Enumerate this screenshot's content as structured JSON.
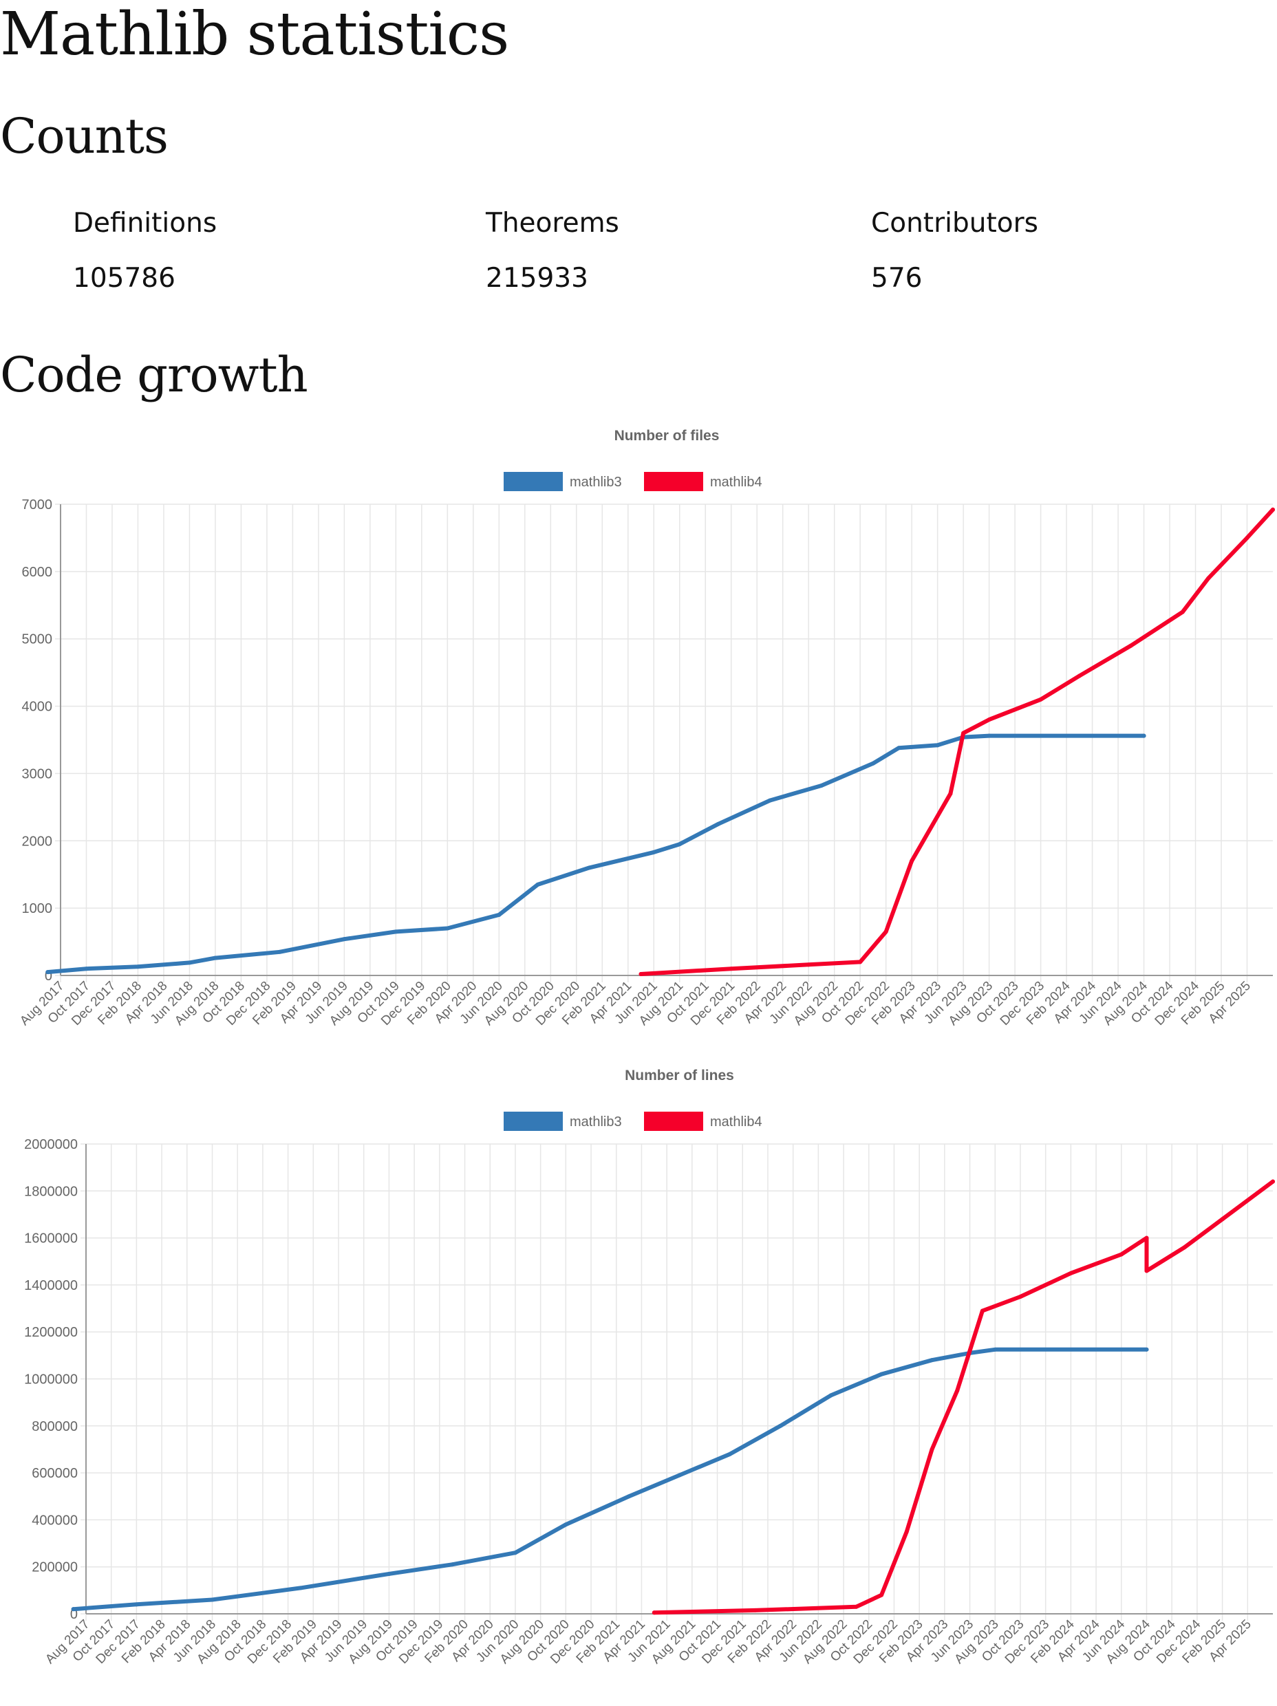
{
  "page": {
    "title": "Mathlib statistics"
  },
  "counts": {
    "heading": "Counts",
    "items": [
      {
        "label": "Definitions",
        "value": "105786"
      },
      {
        "label": "Theorems",
        "value": "215933"
      },
      {
        "label": "Contributors",
        "value": "576"
      }
    ]
  },
  "growth": {
    "heading": "Code growth"
  },
  "colors": {
    "mathlib3": "#3479b6",
    "mathlib4": "#f5002a",
    "grid": "#e6e6e6",
    "axis": "#666666"
  },
  "chart_data": [
    {
      "type": "line",
      "title": "Number of files",
      "xlabel": "",
      "ylabel": "",
      "ylim": [
        0,
        7000
      ],
      "yticks": [
        "0",
        "1000",
        "2000",
        "3000",
        "4000",
        "5000",
        "6000",
        "7000"
      ],
      "ytick_values": [
        0,
        1000,
        2000,
        3000,
        4000,
        5000,
        6000,
        7000
      ],
      "xticks": [
        "Aug 2017",
        "Oct 2017",
        "Dec 2017",
        "Feb 2018",
        "Apr 2018",
        "Jun 2018",
        "Aug 2018",
        "Oct 2018",
        "Dec 2018",
        "Feb 2019",
        "Apr 2019",
        "Jun 2019",
        "Aug 2019",
        "Oct 2019",
        "Dec 2019",
        "Feb 2020",
        "Apr 2020",
        "Jun 2020",
        "Aug 2020",
        "Oct 2020",
        "Dec 2020",
        "Feb 2021",
        "Apr 2021",
        "Jun 2021",
        "Aug 2021",
        "Oct 2021",
        "Dec 2021",
        "Feb 2022",
        "Apr 2022",
        "Jun 2022",
        "Aug 2022",
        "Oct 2022",
        "Dec 2022",
        "Feb 2023",
        "Apr 2023",
        "Jun 2023",
        "Aug 2023",
        "Oct 2023",
        "Dec 2023",
        "Feb 2024",
        "Apr 2024",
        "Jun 2024",
        "Aug 2024",
        "Oct 2024",
        "Dec 2024",
        "Feb 2025",
        "Apr 2025"
      ],
      "xrange": [
        "Aug 2017",
        "Jun 2025"
      ],
      "grid": true,
      "legend": "top-center",
      "series": [
        {
          "name": "mathlib3",
          "x": [
            "2017-07",
            "2017-10",
            "2018-02",
            "2018-06",
            "2018-08",
            "2019-01",
            "2019-06",
            "2019-10",
            "2020-02",
            "2020-06",
            "2020-09",
            "2021-01",
            "2021-06",
            "2021-08",
            "2021-11",
            "2022-03",
            "2022-07",
            "2022-11",
            "2023-01",
            "2023-04",
            "2023-06",
            "2023-08",
            "2024-08"
          ],
          "values": [
            50,
            100,
            130,
            190,
            260,
            350,
            540,
            650,
            700,
            900,
            1350,
            1600,
            1830,
            1950,
            2250,
            2600,
            2820,
            3150,
            3380,
            3420,
            3540,
            3560,
            3560
          ]
        },
        {
          "name": "mathlib4",
          "x": [
            "2021-05",
            "2021-12",
            "2022-06",
            "2022-10",
            "2022-12",
            "2023-02",
            "2023-05",
            "2023-06",
            "2023-08",
            "2023-12",
            "2024-03",
            "2024-07",
            "2024-11",
            "2025-01",
            "2025-04",
            "2025-06"
          ],
          "values": [
            20,
            100,
            160,
            200,
            650,
            1700,
            2700,
            3600,
            3800,
            4100,
            4450,
            4900,
            5400,
            5900,
            6500,
            6920
          ]
        }
      ]
    },
    {
      "type": "line",
      "title": "Number of lines",
      "xlabel": "",
      "ylabel": "",
      "ylim": [
        0,
        2000000
      ],
      "yticks": [
        "0",
        "200000",
        "400000",
        "600000",
        "800000",
        "1000000",
        "1200000",
        "1400000",
        "1600000",
        "1800000",
        "2000000"
      ],
      "ytick_values": [
        0,
        200000,
        400000,
        600000,
        800000,
        1000000,
        1200000,
        1400000,
        1600000,
        1800000,
        2000000
      ],
      "xticks": [
        "Aug 2017",
        "Oct 2017",
        "Dec 2017",
        "Feb 2018",
        "Apr 2018",
        "Jun 2018",
        "Aug 2018",
        "Oct 2018",
        "Dec 2018",
        "Feb 2019",
        "Apr 2019",
        "Jun 2019",
        "Aug 2019",
        "Oct 2019",
        "Dec 2019",
        "Feb 2020",
        "Apr 2020",
        "Jun 2020",
        "Aug 2020",
        "Oct 2020",
        "Dec 2020",
        "Feb 2021",
        "Apr 2021",
        "Jun 2021",
        "Aug 2021",
        "Oct 2021",
        "Dec 2021",
        "Feb 2022",
        "Apr 2022",
        "Jun 2022",
        "Aug 2022",
        "Oct 2022",
        "Dec 2022",
        "Feb 2023",
        "Apr 2023",
        "Jun 2023",
        "Aug 2023",
        "Oct 2023",
        "Dec 2023",
        "Feb 2024",
        "Apr 2024",
        "Jun 2024",
        "Aug 2024",
        "Oct 2024",
        "Dec 2024",
        "Feb 2025",
        "Apr 2025"
      ],
      "xrange": [
        "Aug 2017",
        "Jun 2025"
      ],
      "grid": true,
      "legend": "top-center",
      "series": [
        {
          "name": "mathlib3",
          "x": [
            "2017-07",
            "2017-12",
            "2018-06",
            "2019-01",
            "2019-08",
            "2020-01",
            "2020-06",
            "2020-10",
            "2021-03",
            "2021-07",
            "2021-11",
            "2022-03",
            "2022-07",
            "2022-11",
            "2023-03",
            "2023-06",
            "2023-08",
            "2024-08"
          ],
          "values": [
            20000,
            40000,
            60000,
            110000,
            170000,
            210000,
            260000,
            380000,
            500000,
            590000,
            680000,
            800000,
            930000,
            1020000,
            1080000,
            1110000,
            1125000,
            1125000
          ]
        },
        {
          "name": "mathlib4",
          "x": [
            "2021-05",
            "2022-01",
            "2022-09",
            "2022-11",
            "2023-01",
            "2023-03",
            "2023-05",
            "2023-07",
            "2023-10",
            "2024-02",
            "2024-06",
            "2024-08",
            "2024-08",
            "2024-11",
            "2025-02",
            "2025-06"
          ],
          "values": [
            5000,
            15000,
            30000,
            80000,
            350000,
            700000,
            950000,
            1290000,
            1350000,
            1450000,
            1530000,
            1600000,
            1460000,
            1560000,
            1680000,
            1840000
          ]
        }
      ]
    }
  ]
}
